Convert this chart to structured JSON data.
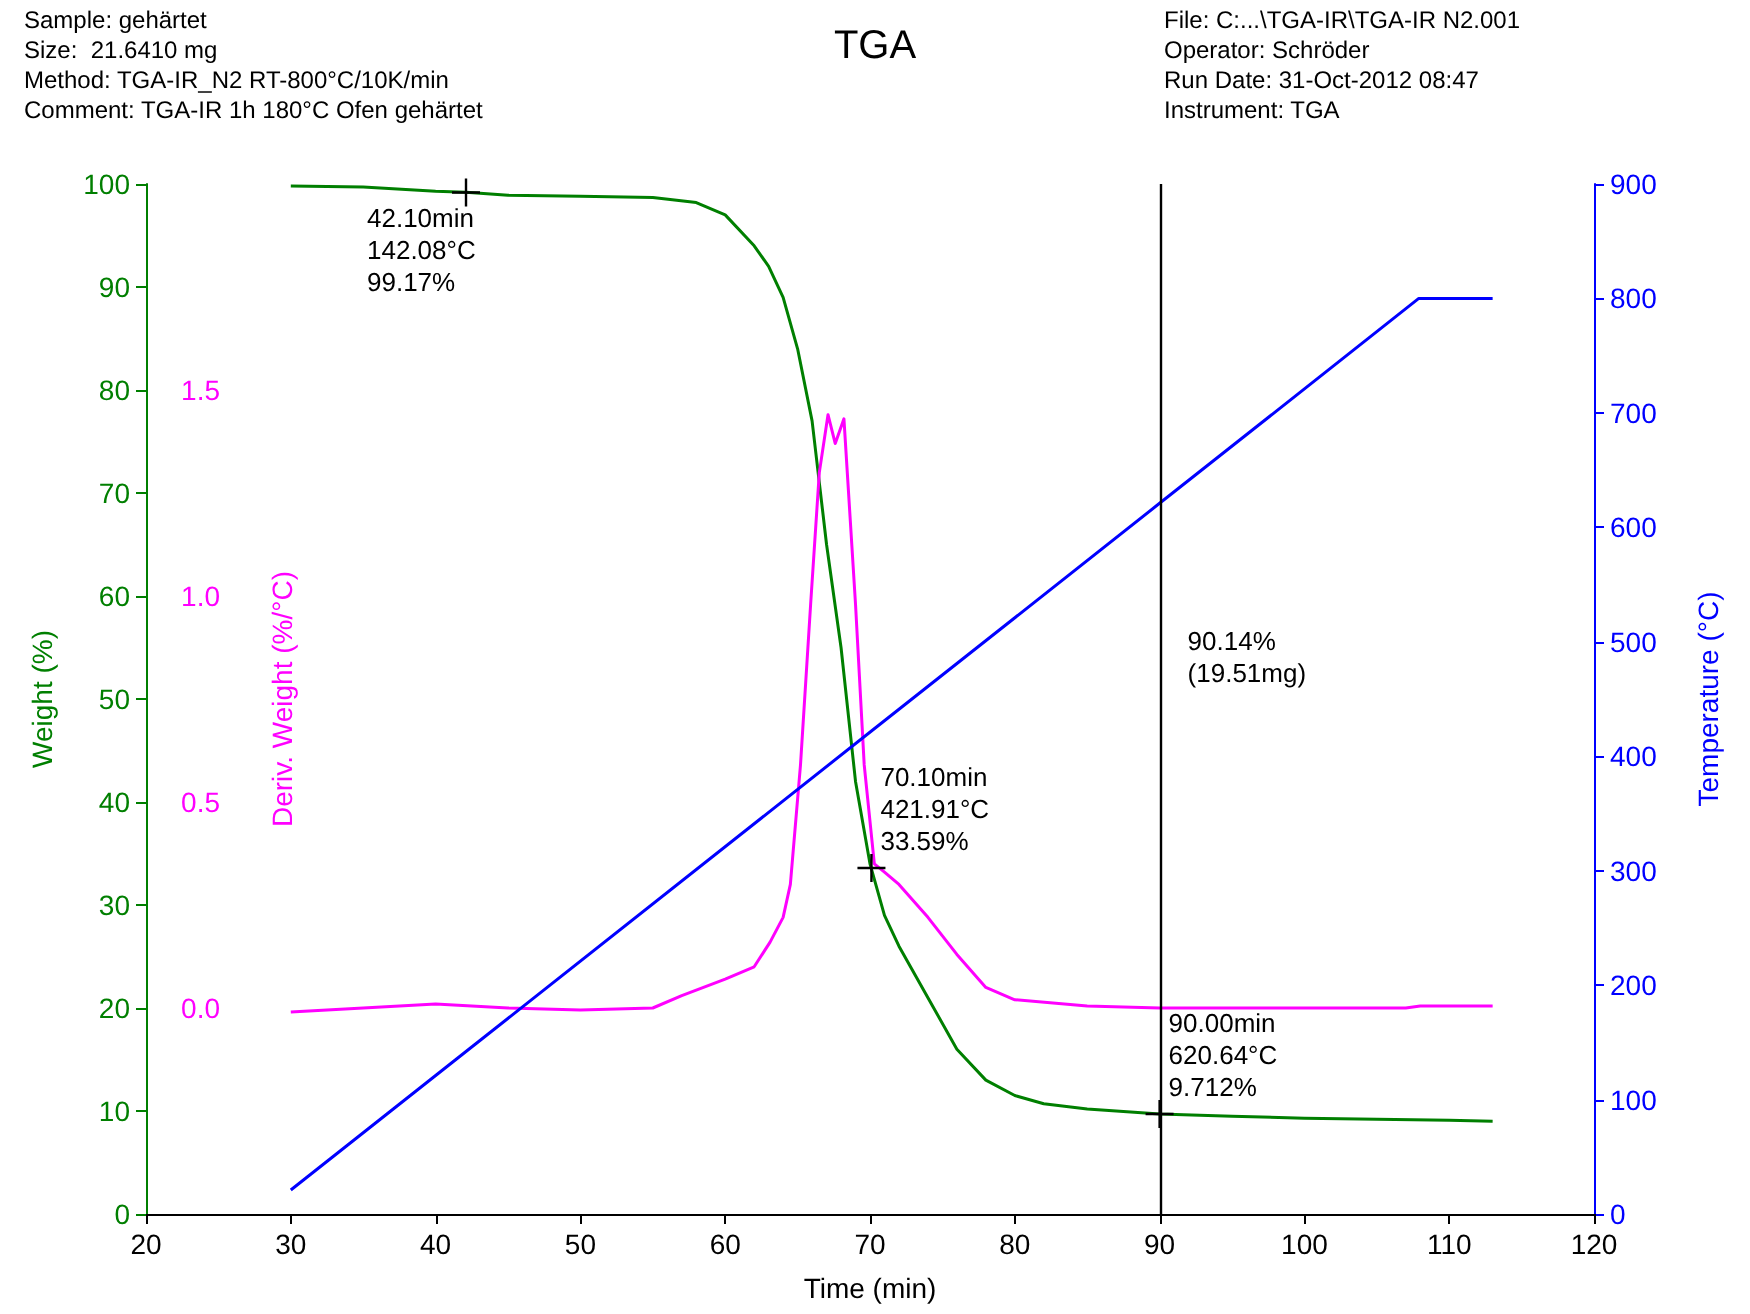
{
  "chart_data": {
    "type": "line",
    "title": "TGA",
    "xlabel": "Time (min)",
    "ylabel": "Weight (%)",
    "y2label": "Temperature (°C)",
    "y3label": "Deriv. Weight (%/°C)",
    "xlim": [
      20,
      120
    ],
    "xticks": [
      20,
      30,
      40,
      50,
      60,
      70,
      80,
      90,
      100,
      110,
      120
    ],
    "ylim": [
      0,
      100
    ],
    "yticks": [
      0,
      10,
      20,
      30,
      40,
      50,
      60,
      70,
      80,
      90,
      100
    ],
    "y2lim": [
      0,
      900
    ],
    "y2ticks": [
      0,
      100,
      200,
      300,
      400,
      500,
      600,
      700,
      800,
      900
    ],
    "y3lim": [
      -0.5,
      2.0
    ],
    "y3ticks": [
      {
        "value": 0,
        "label": "0.0"
      },
      {
        "value": 0.5,
        "label": "0.5"
      },
      {
        "value": 1,
        "label": "1.0"
      },
      {
        "value": 1.5,
        "label": "1.5"
      }
    ],
    "grid": false,
    "marker": "none",
    "line_style": "solid",
    "annotations": [
      "Sample: gehärtet",
      "Size:  21.6410 mg",
      "Method: TGA-IR_N2 RT-800°C/10K/min",
      "Comment: TGA-IR 1h 180°C Ofen gehärtet",
      "File: C:...\\TGA-IR\\TGA-IR N2.001",
      "Operator: Schröder",
      "Run Date: 31-Oct-2012 08:47",
      "Instrument: TGA",
      {
        "text": "42.10min\n142.08°C\n99.17%",
        "x": 42.1,
        "y": 99.17
      },
      {
        "text": "70.10min\n421.91°C\n33.59%",
        "x": 70.1,
        "y": 33.59
      },
      {
        "text": "90.00min\n620.64°C\n9.712%",
        "x": 90,
        "y": 9.712
      }
    ],
    "ref_lines": [
      {
        "axis": "x",
        "value": 90,
        "label": "90.14%\n(19.51mg)",
        "color": "#000000"
      }
    ],
    "series": [
      {
        "color": "#007f00",
        "x": [
          30,
          35,
          40,
          42.1,
          45,
          50,
          55,
          58,
          60,
          62,
          63,
          64,
          65,
          66,
          67,
          68,
          69,
          70,
          71,
          72,
          74,
          76,
          78,
          80,
          82,
          85,
          90,
          95,
          100,
          105,
          110,
          113
        ],
        "values": [
          99.8,
          99.7,
          99.3,
          99.2,
          98.9,
          98.8,
          98.7,
          98.2,
          97,
          94,
          92,
          89,
          84,
          77,
          65,
          55,
          42,
          34,
          29,
          26,
          21,
          16,
          13,
          11.5,
          10.7,
          10.2,
          9.7,
          9.5,
          9.3,
          9.2,
          9.1,
          9.0
        ]
      },
      {
        "color": "#ff00ff",
        "axis": "y3",
        "x": [
          30,
          35,
          40,
          45,
          50,
          55,
          57,
          60,
          62,
          63.1,
          64,
          64.5,
          65.2,
          65.9,
          66.5,
          67.1,
          67.6,
          68.2,
          69,
          69.6,
          70.3,
          71,
          72,
          74,
          76,
          78,
          80,
          85,
          90,
          100,
          107,
          108,
          113
        ],
        "values": [
          -0.01,
          0,
          0.01,
          0,
          -0.005,
          0,
          0.03,
          0.07,
          0.1,
          0.16,
          0.22,
          0.3,
          0.59,
          0.98,
          1.3,
          1.44,
          1.37,
          1.43,
          0.98,
          0.59,
          0.35,
          0.33,
          0.3,
          0.22,
          0.13,
          0.05,
          0.02,
          0.005,
          0,
          0,
          0,
          0.005,
          0.005
        ]
      },
      {
        "color": "#0000ff",
        "axis": "y2",
        "x": [
          30,
          42.1,
          70.1,
          90,
          107.9,
          113
        ],
        "values": [
          21,
          142,
          422,
          621,
          800,
          800
        ]
      }
    ]
  }
}
